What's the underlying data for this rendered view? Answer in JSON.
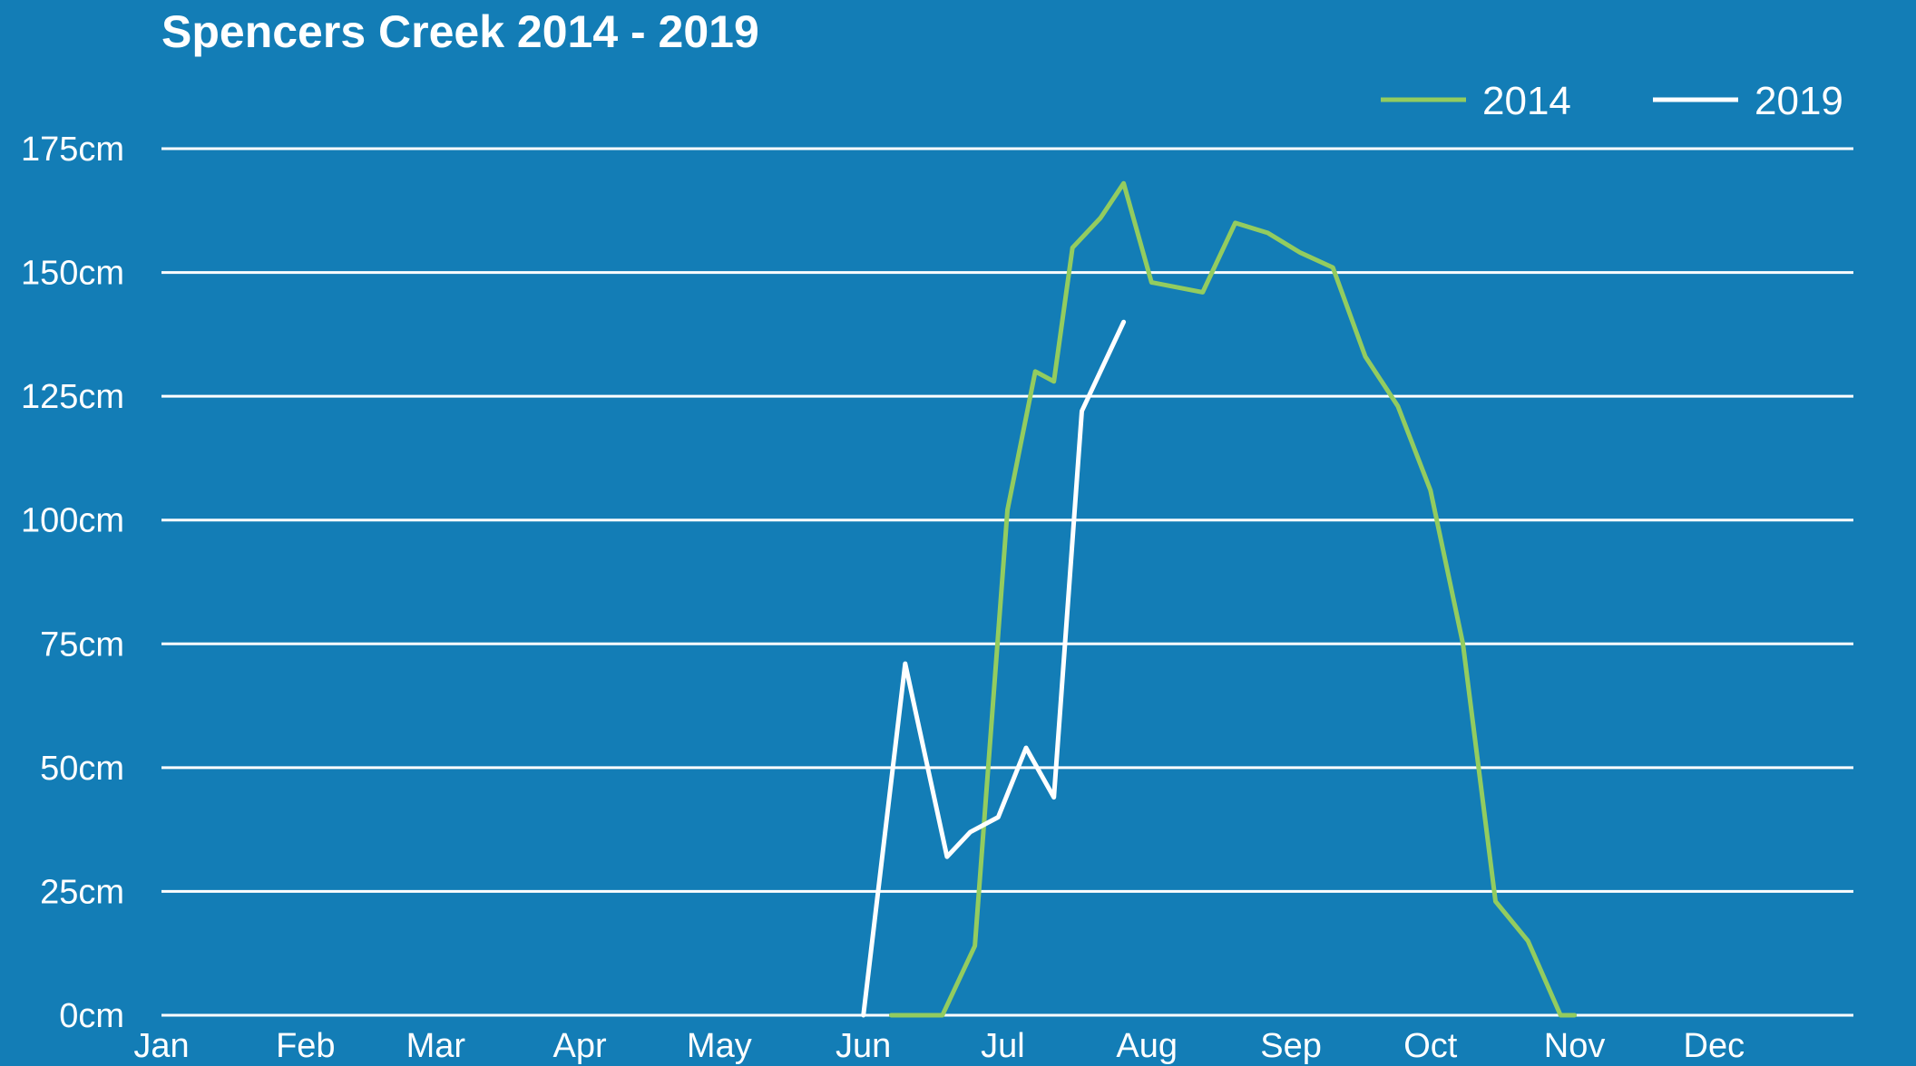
{
  "chart_data": {
    "type": "line",
    "title": "Spencers Creek 2014 - 2019",
    "xlabel": "",
    "ylabel": "",
    "x_unit": "day of year",
    "xlim": [
      1,
      365
    ],
    "ylim": [
      0,
      175
    ],
    "grid": true,
    "legend_position": "top-right",
    "month_labels": [
      "Jan",
      "Feb",
      "Mar",
      "Apr",
      "May",
      "Jun",
      "Jul",
      "Aug",
      "Sep",
      "Oct",
      "Nov",
      "Dec"
    ],
    "month_starts": [
      1,
      32,
      60,
      91,
      121,
      152,
      182,
      213,
      244,
      274,
      305,
      335
    ],
    "y_ticks": [
      0,
      25,
      50,
      75,
      100,
      125,
      150,
      175
    ],
    "y_tick_labels": [
      "0cm",
      "25cm",
      "50cm",
      "75cm",
      "100cm",
      "125cm",
      "150cm",
      "175cm"
    ],
    "series": [
      {
        "name": "2014",
        "color": "#93cc5f",
        "x": [
          158,
          169,
          176,
          183,
          189,
          193,
          197,
          203,
          208,
          214,
          225,
          232,
          239,
          246,
          253,
          260,
          267,
          274,
          281,
          288,
          295,
          302,
          305
        ],
        "y": [
          0,
          0,
          14,
          102,
          130,
          128,
          155,
          161,
          168,
          148,
          146,
          160,
          158,
          154,
          151,
          133,
          123,
          106,
          75,
          23,
          15,
          0,
          0
        ]
      },
      {
        "name": "2019",
        "color": "#ffffff",
        "x": [
          152,
          161,
          170,
          175,
          181,
          187,
          193,
          199,
          208
        ],
        "y": [
          0,
          71,
          32,
          37,
          40,
          54,
          44,
          122,
          140
        ]
      }
    ]
  }
}
